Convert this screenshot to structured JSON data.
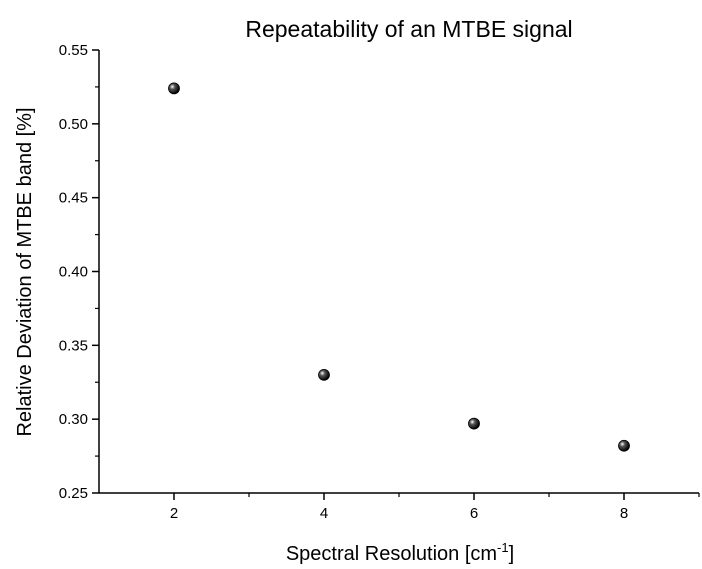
{
  "chart_data": {
    "type": "scatter",
    "title": "Repeatability of an MTBE signal",
    "xlabel": "Spectral Resolution [cm",
    "xlabel_superscript": "-1",
    "xlabel_suffix": "]",
    "ylabel": "Relative Deviation of MTBE band [%]",
    "xlim": [
      1,
      9
    ],
    "ylim": [
      0.25,
      0.55
    ],
    "x_ticks": [
      "2",
      "4",
      "6",
      "8"
    ],
    "y_ticks": [
      "0.25",
      "0.30",
      "0.35",
      "0.40",
      "0.45",
      "0.50",
      "0.55"
    ],
    "x_tick_values": [
      2,
      4,
      6,
      8
    ],
    "y_tick_values": [
      0.25,
      0.3,
      0.35,
      0.4,
      0.45,
      0.5,
      0.55
    ],
    "grid": false,
    "legend": "none",
    "marker_color": "#000000",
    "series": [
      {
        "x": [
          2,
          4,
          6,
          8
        ],
        "y": [
          0.524,
          0.33,
          0.297,
          0.282
        ]
      }
    ]
  }
}
